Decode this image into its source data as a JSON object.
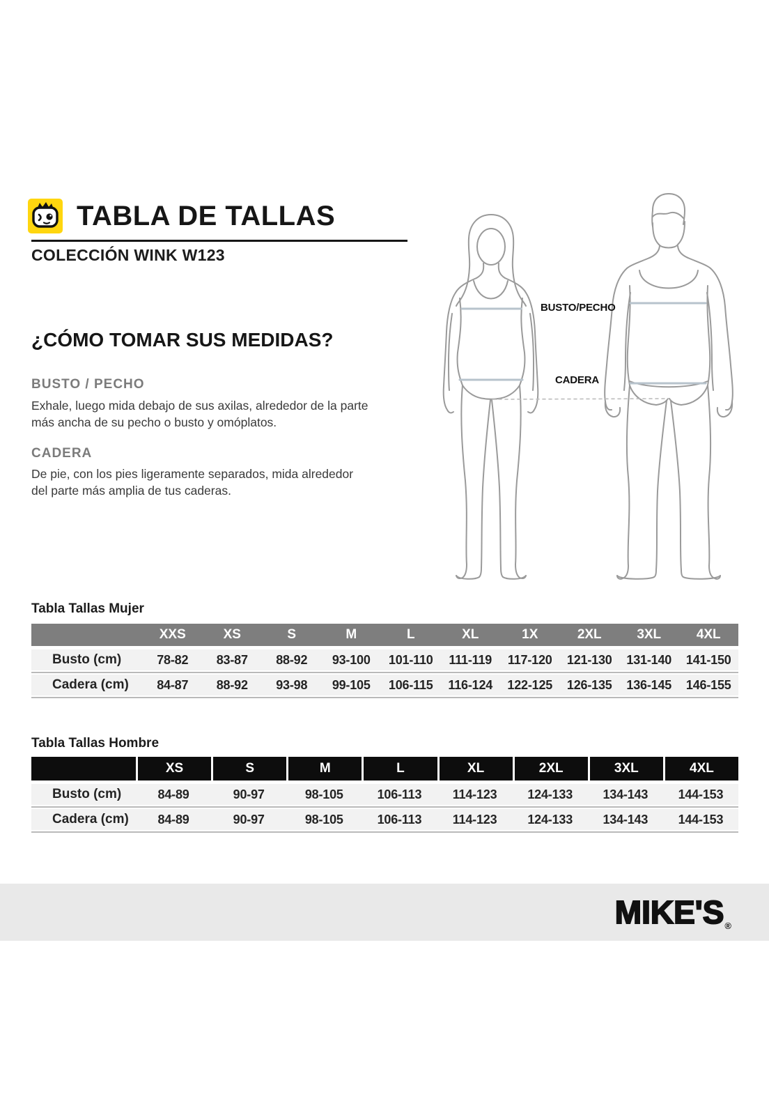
{
  "header": {
    "title": "TABLA DE TALLAS",
    "subtitle": "COLECCIÓN WINK W123",
    "logo_icon": "wink-face-icon"
  },
  "how_to": {
    "title": "¿CÓMO TOMAR SUS MEDIDAS?",
    "sections": [
      {
        "label": "BUSTO / PECHO",
        "text": "Exhale, luego mida debajo de sus axilas, alrededor de la parte\nmás ancha de su pecho o busto y omóplatos."
      },
      {
        "label": "CADERA",
        "text": "De pie, con los pies ligeramente separados, mida alrededor\ndel parte más amplia de tus caderas."
      }
    ]
  },
  "diagram": {
    "chest_label": "BUSTO/PECHO",
    "hip_label": "CADERA"
  },
  "tables": {
    "mujer": {
      "title": "Tabla Tallas Mujer",
      "columns": [
        "XXS",
        "XS",
        "S",
        "M",
        "L",
        "XL",
        "1X",
        "2XL",
        "3XL",
        "4XL"
      ],
      "rows": [
        {
          "label": "Busto (cm)",
          "values": [
            "78-82",
            "83-87",
            "88-92",
            "93-100",
            "101-110",
            "111-119",
            "117-120",
            "121-130",
            "131-140",
            "141-150"
          ]
        },
        {
          "label": "Cadera (cm)",
          "values": [
            "84-87",
            "88-92",
            "93-98",
            "99-105",
            "106-115",
            "116-124",
            "122-125",
            "126-135",
            "136-145",
            "146-155"
          ]
        }
      ]
    },
    "hombre": {
      "title": "Tabla Tallas Hombre",
      "columns": [
        "XS",
        "S",
        "M",
        "L",
        "XL",
        "2XL",
        "3XL",
        "4XL"
      ],
      "rows": [
        {
          "label": "Busto (cm)",
          "values": [
            "84-89",
            "90-97",
            "98-105",
            "106-113",
            "114-123",
            "124-133",
            "134-143",
            "144-153"
          ]
        },
        {
          "label": "Cadera (cm)",
          "values": [
            "84-89",
            "90-97",
            "98-105",
            "106-113",
            "114-123",
            "124-133",
            "134-143",
            "144-153"
          ]
        }
      ]
    }
  },
  "footer": {
    "brand": "MIKE'S",
    "registered": "®"
  },
  "colors": {
    "accent_yellow": "#ffd60f",
    "women_header_gray": "#7e7e7e",
    "men_header_black": "#0d0d0d",
    "row_bg": "#f2f2f2",
    "measure_line_blue": "#b7c3cc",
    "footer_band": "#e9e9e9"
  }
}
